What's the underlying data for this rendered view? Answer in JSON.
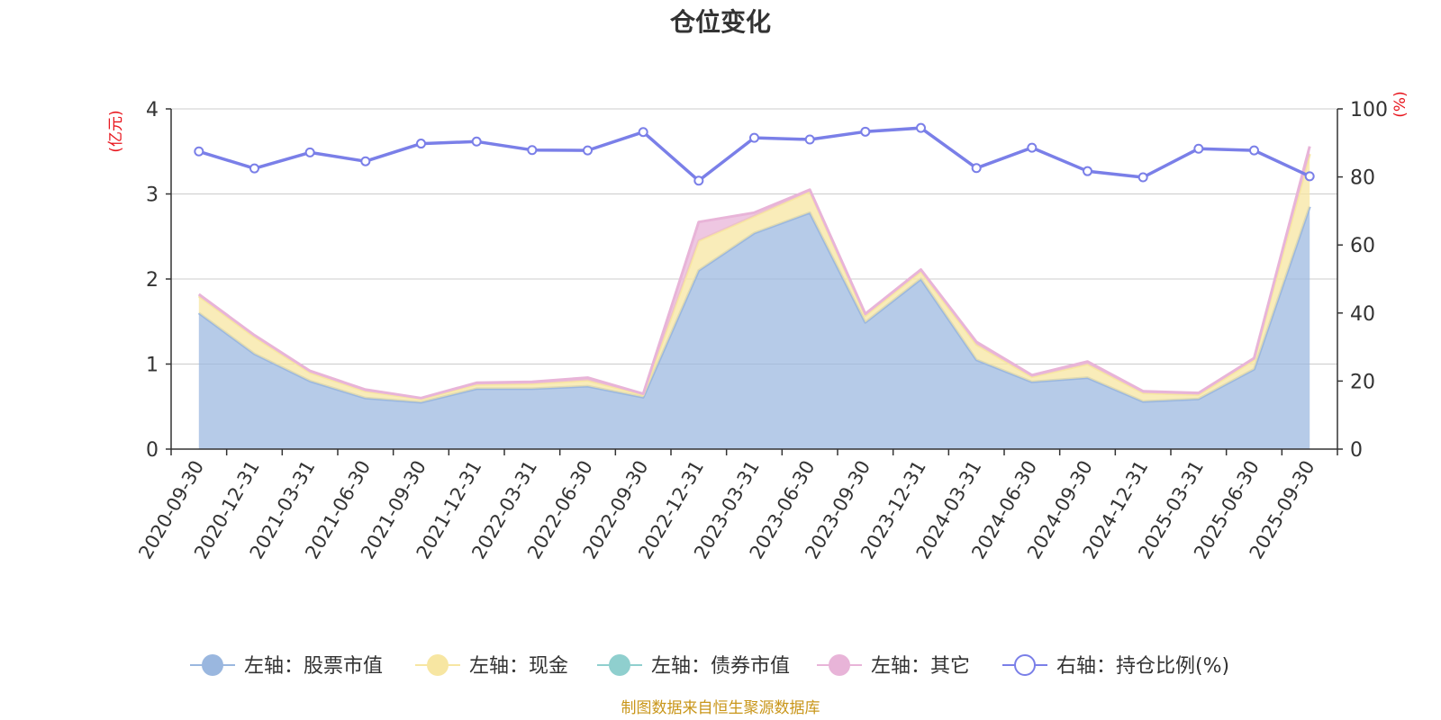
{
  "chart_data": {
    "type": "area",
    "title": "仓位变化",
    "left_unit": "(亿元)",
    "right_unit": "(%)",
    "source": "制图数据来自恒生聚源数据库",
    "legend_position": "bottom",
    "grid": true,
    "left_axis": {
      "min": 0,
      "max": 4,
      "ticks": [
        "0",
        "1",
        "2",
        "3",
        "4"
      ]
    },
    "right_axis": {
      "min": 0,
      "max": 100,
      "ticks": [
        "0",
        "20",
        "40",
        "60",
        "80",
        "100"
      ]
    },
    "categories": [
      "2020-09-30",
      "2020-12-31",
      "2021-03-31",
      "2021-06-30",
      "2021-09-30",
      "2021-12-31",
      "2022-03-31",
      "2022-06-30",
      "2022-09-30",
      "2022-12-31",
      "2023-03-31",
      "2023-06-30",
      "2023-09-30",
      "2023-12-31",
      "2024-03-31",
      "2024-06-30",
      "2024-09-30",
      "2024-12-31",
      "2025-03-31",
      "2025-06-30",
      "2025-09-30"
    ],
    "series": [
      {
        "name": "左轴：股票市值",
        "axis": "left",
        "kind": "stacked-area",
        "color": "#9ab7df",
        "values": [
          1.6,
          1.12,
          0.8,
          0.6,
          0.55,
          0.71,
          0.71,
          0.74,
          0.61,
          2.1,
          2.54,
          2.78,
          1.49,
          2.0,
          1.05,
          0.79,
          0.84,
          0.56,
          0.59,
          0.94,
          2.85
        ]
      },
      {
        "name": "左轴：现金",
        "axis": "left",
        "kind": "stacked-area",
        "color": "#f7e6a2",
        "values": [
          0.2,
          0.2,
          0.1,
          0.08,
          0.04,
          0.05,
          0.06,
          0.07,
          0.03,
          0.35,
          0.2,
          0.25,
          0.08,
          0.09,
          0.18,
          0.06,
          0.16,
          0.1,
          0.05,
          0.11,
          0.62
        ]
      },
      {
        "name": "左轴：债券市值",
        "axis": "left",
        "kind": "stacked-area",
        "color": "#8fcfce",
        "values": [
          0,
          0,
          0,
          0,
          0,
          0,
          0,
          0,
          0,
          0,
          0,
          0,
          0,
          0,
          0,
          0,
          0,
          0,
          0,
          0,
          0
        ]
      },
      {
        "name": "左轴：其它",
        "axis": "left",
        "kind": "stacked-area",
        "color": "#e8b4d8",
        "values": [
          0.02,
          0.02,
          0.02,
          0.02,
          0.01,
          0.02,
          0.02,
          0.03,
          0.01,
          0.22,
          0.04,
          0.02,
          0.02,
          0.02,
          0.03,
          0.02,
          0.03,
          0.02,
          0.02,
          0.02,
          0.09
        ]
      },
      {
        "name": "右轴：持仓比例(%)",
        "axis": "right",
        "kind": "line",
        "color": "#7a7fe8",
        "values": [
          87.5,
          82.5,
          87.2,
          84.6,
          89.8,
          90.4,
          87.9,
          87.8,
          93.2,
          78.9,
          91.5,
          91.0,
          93.3,
          94.4,
          82.6,
          88.6,
          81.7,
          79.9,
          88.3,
          87.8,
          80.2
        ]
      }
    ]
  }
}
